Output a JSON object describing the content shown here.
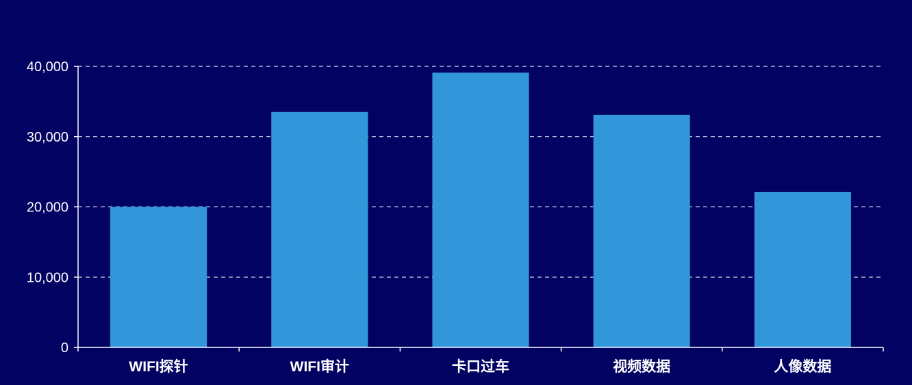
{
  "colors": {
    "background": "#020262",
    "bar": "#3296DA",
    "axis": "#ffffff",
    "grid": "#d8d8ee",
    "text": "#ffffff"
  },
  "chart_data": {
    "type": "bar",
    "title": "",
    "xlabel": "",
    "ylabel": "",
    "categories": [
      "WIFI探针",
      "WIFI审计",
      "卡口过车",
      "视频数据",
      "人像数据"
    ],
    "values": [
      20000,
      33500,
      39100,
      33100,
      22100
    ],
    "ylim": [
      0,
      40000
    ],
    "yticks": [
      0,
      10000,
      20000,
      30000,
      40000
    ],
    "ytick_labels": [
      "0",
      "10,000",
      "20,000",
      "30,000",
      "40,000"
    ],
    "grid": "horizontal dashed",
    "legend": "none"
  }
}
